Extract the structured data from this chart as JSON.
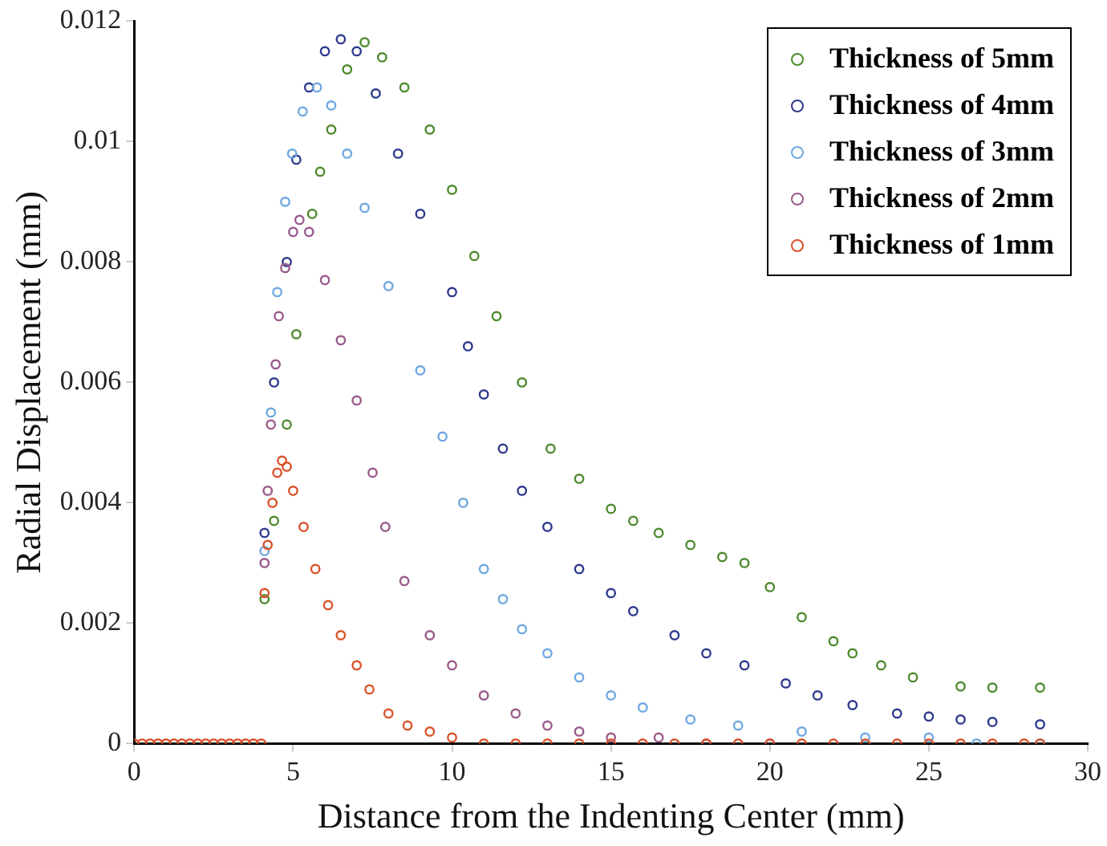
{
  "chart_data": {
    "type": "scatter",
    "xlabel": "Distance from the Indenting Center (mm)",
    "ylabel": "Radial Displacement (mm)",
    "xlim": [
      0,
      30
    ],
    "xticks": [
      0,
      5,
      10,
      15,
      20,
      25,
      30
    ],
    "ylim": [
      0,
      0.012
    ],
    "yticks": [
      0,
      0.002,
      0.004,
      0.006,
      0.008,
      0.01,
      0.012
    ],
    "grid": false,
    "legend": "top right",
    "marker": "circle",
    "series": [
      {
        "name": "Thickness of 5mm",
        "color": "#4e8a2e",
        "x": [
          4.1,
          4.4,
          4.8,
          5.1,
          5.6,
          5.85,
          6.2,
          6.7,
          7.25,
          7.8,
          8.5,
          9.3,
          10,
          10.7,
          11.4,
          12.2,
          13.1,
          14,
          15,
          15.7,
          16.5,
          17.5,
          18.5,
          19.2,
          20,
          21,
          22,
          22.6,
          23.5,
          24.5,
          26,
          27,
          28.5
        ],
        "values": [
          0.0024,
          0.0037,
          0.0053,
          0.0068,
          0.0088,
          0.0095,
          0.0102,
          0.0112,
          0.01165,
          0.0114,
          0.0109,
          0.0102,
          0.0092,
          0.0081,
          0.0071,
          0.006,
          0.0049,
          0.0044,
          0.0039,
          0.0037,
          0.0035,
          0.0033,
          0.0031,
          0.003,
          0.0026,
          0.0021,
          0.0017,
          0.0015,
          0.0013,
          0.0011,
          0.00095,
          0.00093,
          0.00093
        ]
      },
      {
        "name": "Thickness of 4mm",
        "color": "#2e3a8c",
        "x": [
          4.1,
          4.4,
          4.8,
          5.1,
          5.5,
          6,
          6.5,
          7,
          7.6,
          8.3,
          9,
          10,
          10.5,
          11,
          11.6,
          12.2,
          13,
          14,
          15,
          15.7,
          17,
          18,
          19.2,
          20.5,
          21.5,
          22.6,
          24,
          25,
          26,
          27,
          28.5
        ],
        "values": [
          0.0035,
          0.006,
          0.008,
          0.0097,
          0.0109,
          0.0115,
          0.0117,
          0.0115,
          0.0108,
          0.0098,
          0.0088,
          0.0075,
          0.0066,
          0.0058,
          0.0049,
          0.0042,
          0.0036,
          0.0029,
          0.0025,
          0.0022,
          0.0018,
          0.0015,
          0.0013,
          0.001,
          0.0008,
          0.00064,
          0.0005,
          0.00045,
          0.0004,
          0.00036,
          0.00032
        ]
      },
      {
        "name": "Thickness of 3mm",
        "color": "#6fa8e0",
        "x": [
          4.1,
          4.3,
          4.5,
          4.75,
          4.97,
          5.3,
          5.75,
          6.2,
          6.7,
          7.25,
          8,
          9,
          9.7,
          10.35,
          11,
          11.6,
          12.2,
          13,
          14,
          15,
          16,
          17.5,
          19,
          21,
          23,
          25,
          26.5,
          28.5
        ],
        "values": [
          0.0032,
          0.0055,
          0.0075,
          0.009,
          0.0098,
          0.0105,
          0.0109,
          0.0106,
          0.0098,
          0.0089,
          0.0076,
          0.0062,
          0.0051,
          0.004,
          0.0029,
          0.0024,
          0.0019,
          0.0015,
          0.0011,
          0.0008,
          0.0006,
          0.0004,
          0.0003,
          0.0002,
          0.0001,
          0.0001,
          0,
          0
        ]
      },
      {
        "name": "Thickness of 2mm",
        "color": "#9a5a8a",
        "x": [
          4.1,
          4.2,
          4.3,
          4.45,
          4.55,
          4.75,
          5,
          5.2,
          5.5,
          6,
          6.5,
          7,
          7.5,
          7.9,
          8.5,
          9.3,
          10,
          11,
          12,
          13,
          14,
          15,
          16.5,
          18,
          20
        ],
        "values": [
          0.003,
          0.0042,
          0.0053,
          0.0063,
          0.0071,
          0.0079,
          0.0085,
          0.0087,
          0.0085,
          0.0077,
          0.0067,
          0.0057,
          0.0045,
          0.0036,
          0.0027,
          0.0018,
          0.0013,
          0.0008,
          0.0005,
          0.0003,
          0.0002,
          0.0001,
          0.0001,
          0,
          0
        ]
      },
      {
        "name": "Thickness of 1mm",
        "color": "#d9532a",
        "x": [
          0,
          0.25,
          0.5,
          0.75,
          1,
          1.25,
          1.5,
          1.75,
          2,
          2.25,
          2.5,
          2.75,
          3,
          3.25,
          3.5,
          3.75,
          4,
          4.1,
          4.2,
          4.35,
          4.5,
          4.65,
          4.8,
          5,
          5.33,
          5.7,
          6.1,
          6.5,
          7,
          7.4,
          8,
          8.6,
          9.3,
          10,
          11,
          12,
          13,
          14,
          15,
          16,
          17,
          18,
          19,
          20,
          21,
          22,
          23,
          24,
          25,
          26,
          27,
          28,
          28.5
        ],
        "values": [
          0,
          0,
          0,
          0,
          0,
          0,
          0,
          0,
          0,
          0,
          0,
          0,
          0,
          0,
          0,
          0,
          0,
          0.0025,
          0.0033,
          0.004,
          0.0045,
          0.0047,
          0.0046,
          0.0042,
          0.0036,
          0.0029,
          0.0023,
          0.0018,
          0.0013,
          0.0009,
          0.0005,
          0.0003,
          0.0002,
          0.0001,
          0,
          0,
          0,
          0,
          0,
          0,
          0,
          0,
          0,
          0,
          0,
          0,
          0,
          0,
          0,
          0,
          0,
          0,
          0
        ]
      }
    ]
  }
}
